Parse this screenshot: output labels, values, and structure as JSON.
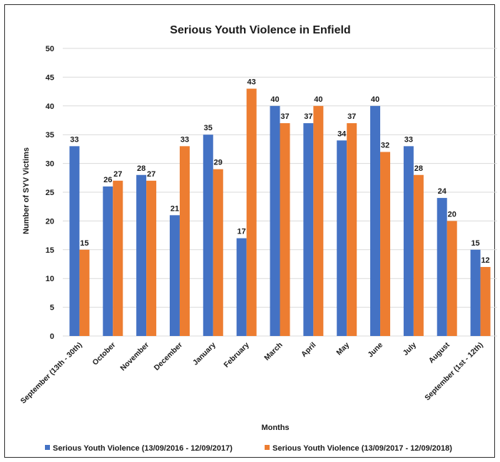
{
  "chart_data": {
    "type": "bar",
    "title": "Serious Youth Violence in Enfield",
    "xlabel": "Months",
    "ylabel": "Number of SYV Victims",
    "ylim": [
      0,
      50
    ],
    "yticks": [
      0,
      5,
      10,
      15,
      20,
      25,
      30,
      35,
      40,
      45,
      50
    ],
    "grid": true,
    "legend_position": "bottom",
    "categories": [
      "September (13th - 30th)",
      "October",
      "November",
      "December",
      "January",
      "February",
      "March",
      "April",
      "May",
      "June",
      "July",
      "August",
      "September (1st - 12th)"
    ],
    "series": [
      {
        "name": "Serious Youth Violence (13/09/2016 - 12/09/2017)",
        "color": "#4472c4",
        "values": [
          33,
          26,
          28,
          21,
          35,
          17,
          40,
          37,
          34,
          40,
          33,
          24,
          15
        ]
      },
      {
        "name": "Serious Youth Violence (13/09/2017 - 12/09/2018)",
        "color": "#ed7d31",
        "values": [
          15,
          27,
          27,
          33,
          29,
          43,
          37,
          40,
          37,
          32,
          28,
          20,
          12
        ]
      }
    ]
  }
}
